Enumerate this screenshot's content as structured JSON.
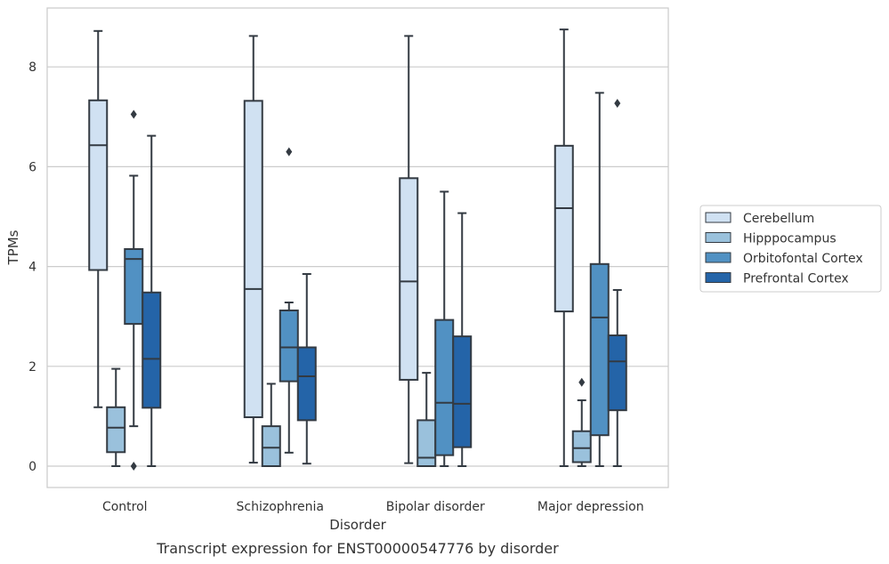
{
  "chart_data": {
    "type": "box",
    "caption": "Transcript expression for ENST00000547776 by disorder",
    "xlabel": "Disorder",
    "ylabel": "TPMs",
    "ylim": [
      -0.4,
      9.3
    ],
    "yticks": [
      0,
      2,
      4,
      6,
      8
    ],
    "grid": true,
    "legend_position": "right",
    "categories": [
      "Control",
      "Schizophrenia",
      "Bipolar disorder",
      "Major depression"
    ],
    "series": [
      {
        "name": "Cerebellum",
        "color": "#d0e1f2",
        "boxes": [
          {
            "whislo": 1.18,
            "q1": 3.93,
            "med": 6.43,
            "q3": 7.33,
            "whishi": 8.72,
            "fliers": []
          },
          {
            "whislo": 0.07,
            "q1": 0.98,
            "med": 3.55,
            "q3": 7.32,
            "whishi": 8.62,
            "fliers": []
          },
          {
            "whislo": 0.06,
            "q1": 1.73,
            "med": 3.7,
            "q3": 5.77,
            "whishi": 8.62,
            "fliers": []
          },
          {
            "whislo": 0.0,
            "q1": 3.1,
            "med": 5.17,
            "q3": 6.42,
            "whishi": 8.75,
            "fliers": []
          }
        ]
      },
      {
        "name": "Hipppocampus",
        "color": "#9ac1dc",
        "boxes": [
          {
            "whislo": 0.0,
            "q1": 0.28,
            "med": 0.77,
            "q3": 1.18,
            "whishi": 1.95,
            "fliers": []
          },
          {
            "whislo": 0.0,
            "q1": 0.0,
            "med": 0.37,
            "q3": 0.8,
            "whishi": 1.65,
            "fliers": []
          },
          {
            "whislo": 0.0,
            "q1": 0.0,
            "med": 0.17,
            "q3": 0.92,
            "whishi": 1.87,
            "fliers": []
          },
          {
            "whislo": 0.0,
            "q1": 0.08,
            "med": 0.36,
            "q3": 0.7,
            "whishi": 1.32,
            "fliers": [
              1.68
            ]
          }
        ]
      },
      {
        "name": "Orbitofontal Cortex",
        "color": "#5191c3",
        "boxes": [
          {
            "whislo": 0.8,
            "q1": 2.85,
            "med": 4.15,
            "q3": 4.35,
            "whishi": 5.82,
            "fliers": [
              7.05,
              0.0
            ]
          },
          {
            "whislo": 0.27,
            "q1": 1.7,
            "med": 2.38,
            "q3": 3.12,
            "whishi": 3.28,
            "fliers": [
              6.3
            ]
          },
          {
            "whislo": 0.0,
            "q1": 0.22,
            "med": 1.27,
            "q3": 2.93,
            "whishi": 5.5,
            "fliers": []
          },
          {
            "whislo": 0.0,
            "q1": 0.62,
            "med": 2.98,
            "q3": 4.05,
            "whishi": 7.48,
            "fliers": []
          }
        ]
      },
      {
        "name": "Prefrontal Cortex",
        "color": "#2464a8",
        "boxes": [
          {
            "whislo": 0.0,
            "q1": 1.17,
            "med": 2.15,
            "q3": 3.48,
            "whishi": 6.62,
            "fliers": []
          },
          {
            "whislo": 0.05,
            "q1": 0.92,
            "med": 1.8,
            "q3": 2.38,
            "whishi": 3.85,
            "fliers": []
          },
          {
            "whislo": 0.0,
            "q1": 0.38,
            "med": 1.25,
            "q3": 2.6,
            "whishi": 5.07,
            "fliers": []
          },
          {
            "whislo": 0.0,
            "q1": 1.12,
            "med": 2.1,
            "q3": 2.62,
            "whishi": 3.53,
            "fliers": [
              7.27
            ]
          }
        ]
      }
    ]
  }
}
